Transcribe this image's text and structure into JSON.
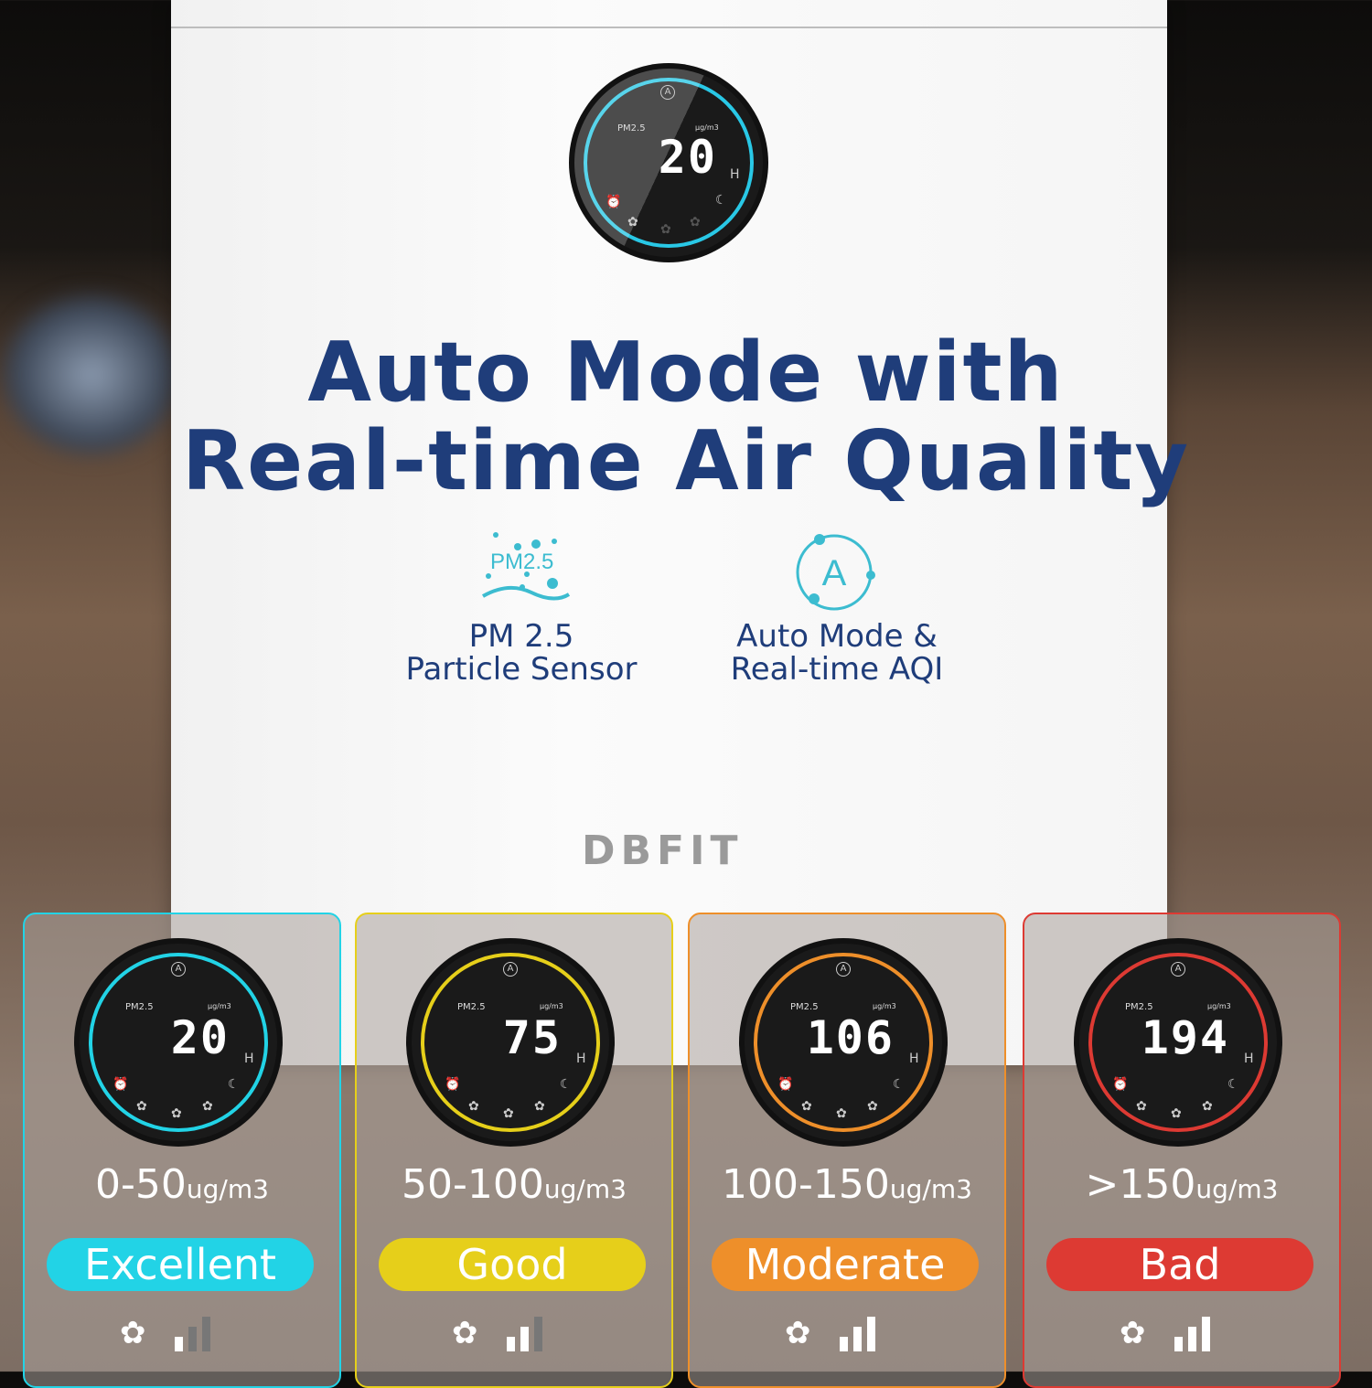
{
  "headline": {
    "line1": "Auto Mode with",
    "line2": "Real-time Air Quality"
  },
  "main_display": {
    "label": "PM2.5",
    "unit": "μg/m3",
    "value": "20",
    "suffix": "H",
    "mode_icon": "A",
    "ring_color": "#29c8e6"
  },
  "features": [
    {
      "icon": "pm25-particle-icon",
      "icon_text": "PM2.5",
      "line1": "PM 2.5",
      "line2": "Particle Sensor"
    },
    {
      "icon": "auto-mode-icon",
      "icon_text": "A",
      "line1": "Auto Mode &",
      "line2": "Real-time AQI"
    }
  ],
  "brand": "DBFIT",
  "levels": [
    {
      "value": "20",
      "range": "0-50",
      "unit": "ug/m3",
      "status": "Excellent",
      "color": "#22d3e6",
      "fan_speed": 1
    },
    {
      "value": "75",
      "range": "50-100",
      "unit": "ug/m3",
      "status": "Good",
      "color": "#e6cf1a",
      "fan_speed": 2
    },
    {
      "value": "106",
      "range": "100-150",
      "unit": "ug/m3",
      "status": "Moderate",
      "color": "#ee8f2a",
      "fan_speed": 3
    },
    {
      "value": "194",
      "range": ">150",
      "unit": "ug/m3",
      "status": "Bad",
      "color": "#dd3a33",
      "fan_speed": 3
    }
  ]
}
